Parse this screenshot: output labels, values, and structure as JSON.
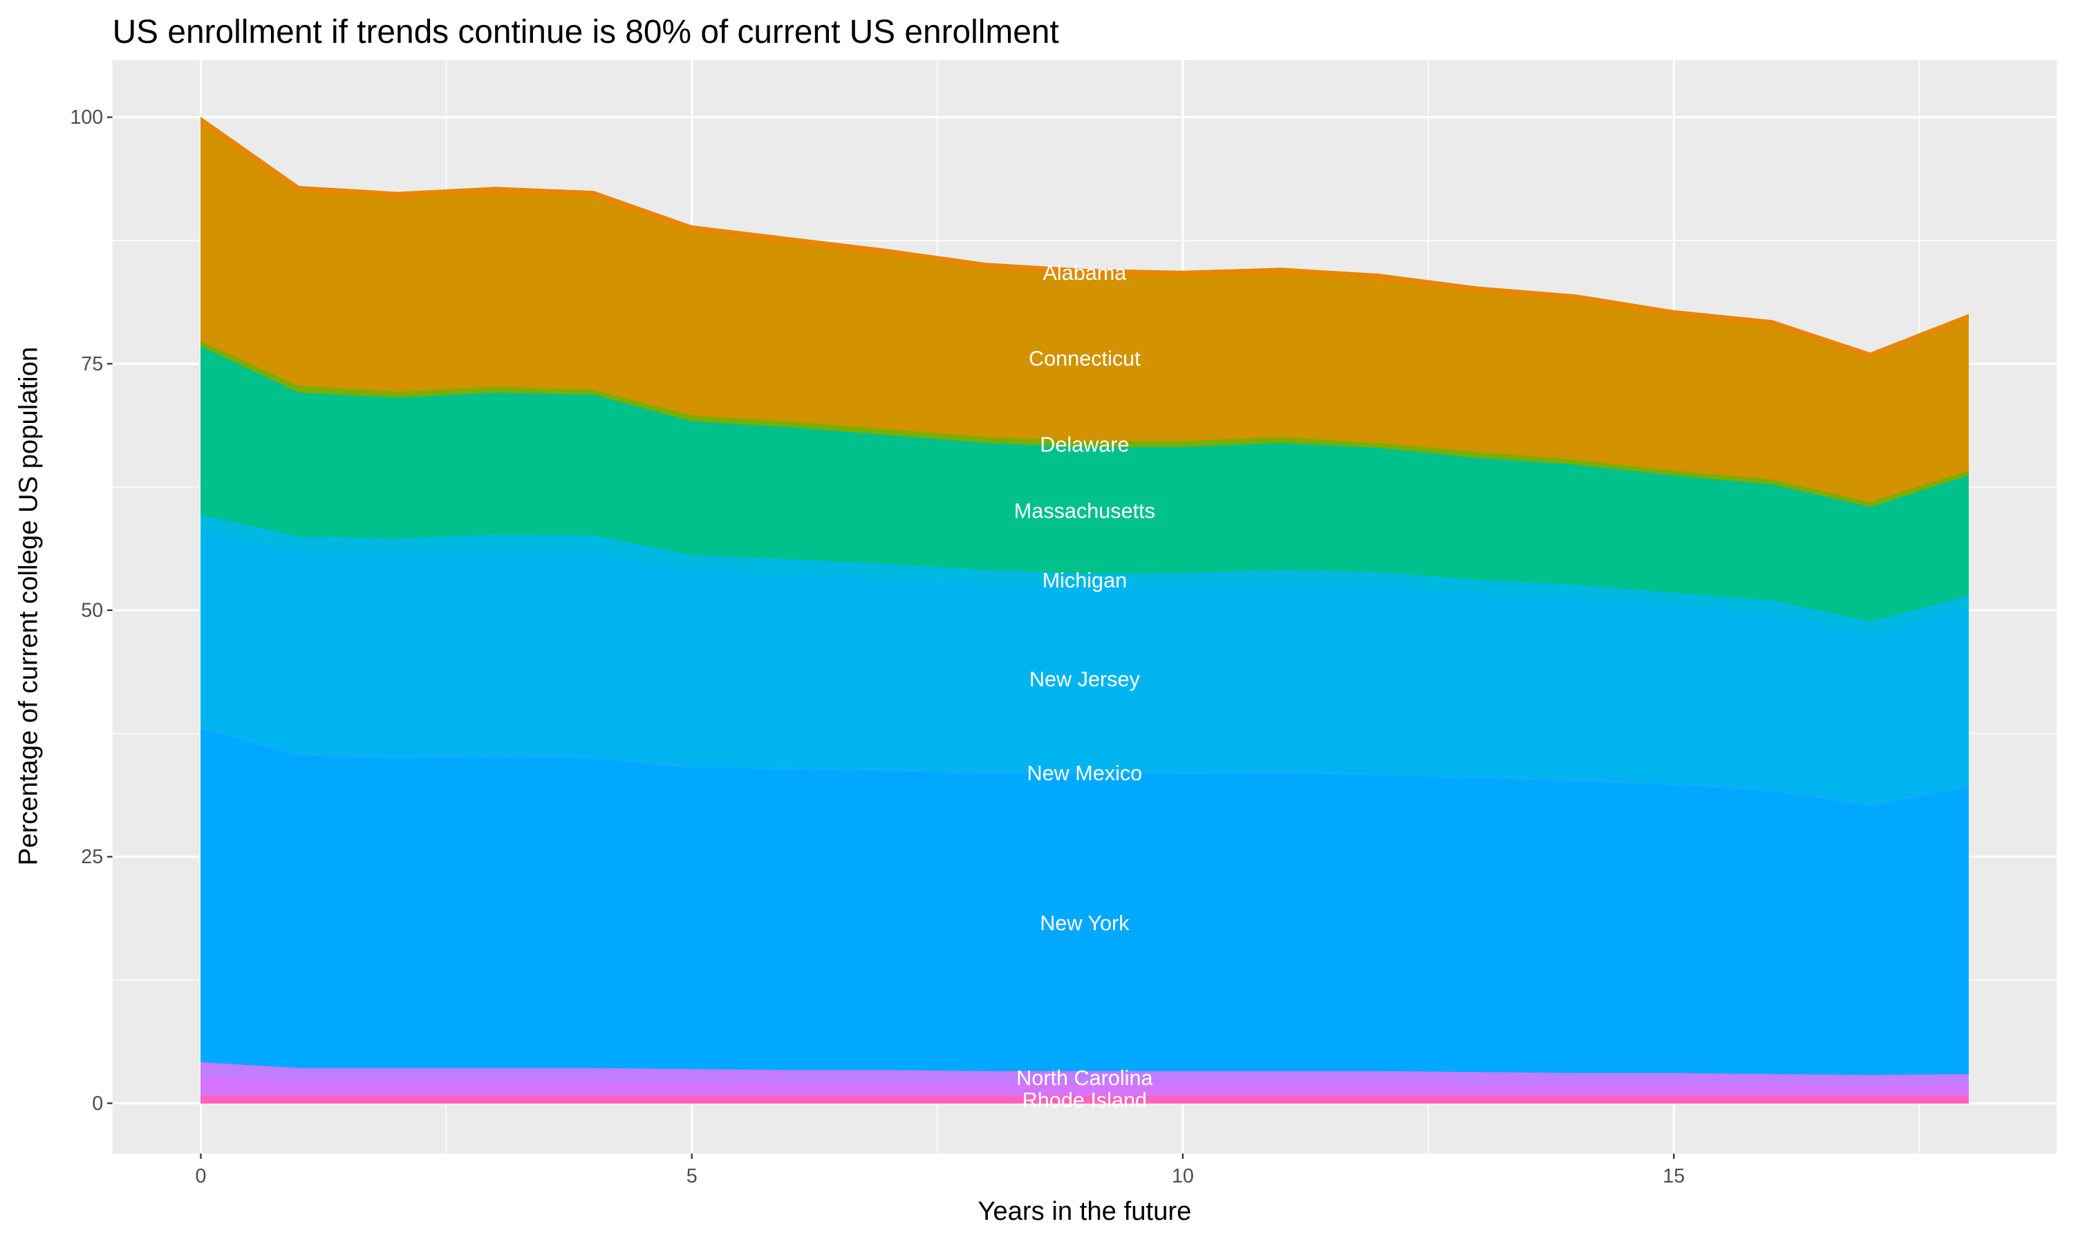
{
  "chart_data": {
    "type": "area",
    "stacked": true,
    "values_are_cumulative_tops": true,
    "title": "US enrollment if trends continue is 80% of current US enrollment",
    "xlabel": "Years in the future",
    "ylabel": "Percentage of current college US population",
    "xlim": [
      -0.9,
      18.9
    ],
    "ylim": [
      -5.1,
      105.8
    ],
    "x_ticks": [
      0,
      5,
      10,
      15
    ],
    "x_tick_labels": [
      "0",
      "5",
      "10",
      "15"
    ],
    "y_ticks": [
      0,
      25,
      50,
      75,
      100
    ],
    "y_tick_labels": [
      "0",
      "25",
      "50",
      "75",
      "100"
    ],
    "grid": true,
    "label_x": 9,
    "x": [
      0,
      1,
      2,
      3,
      4,
      5,
      6,
      7,
      8,
      9,
      10,
      11,
      12,
      13,
      14,
      15,
      16,
      17,
      18
    ],
    "series": [
      {
        "name": "Rhode Island",
        "color": "#FF62BC",
        "values": [
          0.8,
          0.8,
          0.8,
          0.8,
          0.8,
          0.8,
          0.8,
          0.8,
          0.8,
          0.8,
          0.8,
          0.8,
          0.8,
          0.8,
          0.8,
          0.8,
          0.8,
          0.8,
          0.8
        ]
      },
      {
        "name": "",
        "color": "#D575FE",
        "values": [
          2.8,
          2.2,
          2.2,
          2.2,
          2.2,
          2.1,
          2.0,
          2.0,
          2.0,
          2.0,
          2.0,
          2.0,
          2.0,
          1.9,
          1.9,
          1.9,
          1.8,
          1.8,
          1.8
        ]
      },
      {
        "name": "North Carolina",
        "color": "#C27CFF",
        "values": [
          4.2,
          3.6,
          3.6,
          3.6,
          3.6,
          3.5,
          3.4,
          3.4,
          3.3,
          3.3,
          3.3,
          3.3,
          3.3,
          3.2,
          3.1,
          3.1,
          3.0,
          2.9,
          3.0
        ]
      },
      {
        "name": "New York",
        "color": "#00A9FF",
        "values": [
          38,
          35.3,
          35,
          35.2,
          35,
          34,
          33.9,
          33.7,
          33.5,
          33.4,
          33.4,
          33.5,
          33.3,
          33,
          32.7,
          32.3,
          31.7,
          30.2,
          32.1
        ]
      },
      {
        "name": "New Mexico",
        "color": "#0CB0F8",
        "values": [
          38.3,
          35.6,
          35.3,
          35.5,
          35.3,
          34.3,
          34.2,
          34.0,
          33.8,
          33.7,
          33.7,
          33.8,
          33.6,
          33.3,
          33.0,
          32.6,
          32.0,
          30.5,
          32.4
        ]
      },
      {
        "name": "New Jersey",
        "color": "#00B4EF",
        "values": [
          58,
          55.9,
          55.6,
          55.9,
          55.8,
          54,
          53.6,
          53.2,
          52.7,
          52.5,
          52.5,
          52.7,
          52.4,
          51.7,
          51.2,
          50.5,
          49.7,
          47.5,
          50.3
        ]
      },
      {
        "name": "Michigan",
        "color": "#00B9E3",
        "values": [
          59.7,
          57.5,
          57.3,
          57.7,
          57.6,
          55.6,
          55.2,
          54.7,
          54.1,
          53.7,
          53.8,
          54.1,
          53.9,
          53.1,
          52.6,
          51.8,
          51,
          48.9,
          51.5
        ]
      },
      {
        "name": "Massachusetts",
        "color": "#00C08B",
        "values": [
          76.8,
          72.1,
          71.6,
          72.1,
          71.9,
          69.2,
          68.6,
          67.8,
          67.0,
          66.6,
          66.6,
          67.0,
          66.5,
          65.5,
          64.8,
          63.7,
          62.8,
          60.5,
          63.7
        ]
      },
      {
        "name": "Delaware",
        "color": "#7CAE00",
        "values": [
          77.3,
          72.8,
          72.2,
          72.7,
          72.4,
          69.8,
          69.2,
          68.4,
          67.6,
          67.2,
          67.2,
          67.6,
          67.0,
          66.1,
          65.3,
          64.2,
          63.3,
          61.0,
          64.2
        ]
      },
      {
        "name": "Connecticut",
        "color": "#D39200",
        "values": [
          99.3,
          92.4,
          91.8,
          92.3,
          91.9,
          88.4,
          87.2,
          86.0,
          84.6,
          84.0,
          83.8,
          84.1,
          83.5,
          82.2,
          81.4,
          79.8,
          78.8,
          75.5,
          79.4
        ]
      },
      {
        "name": "Alabama",
        "color": "#E58700",
        "values": [
          100,
          93,
          92.4,
          92.9,
          92.5,
          89,
          87.8,
          86.6,
          85.2,
          84.6,
          84.4,
          84.7,
          84.1,
          82.8,
          82.0,
          80.4,
          79.4,
          76.1,
          80
        ]
      }
    ]
  }
}
